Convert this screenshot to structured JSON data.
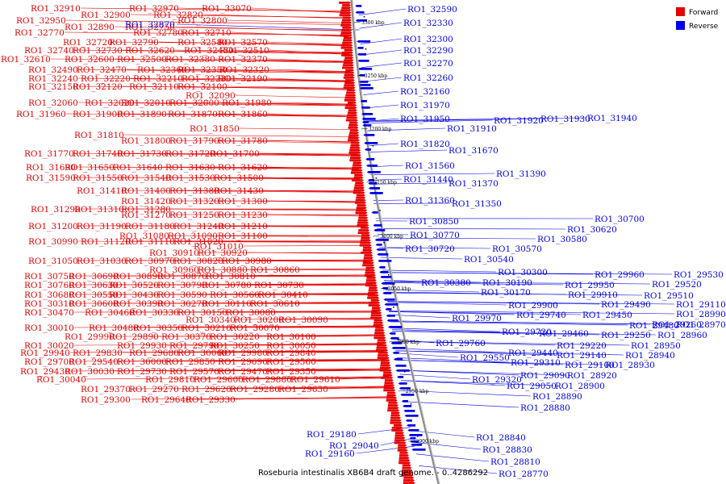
{
  "caption": "Roseburia intestinalis XB6B4 draft genome. - 0..4286292",
  "colors": {
    "forward": "#e60000",
    "reverse": "#0000e6"
  },
  "legend": [
    {
      "name": "Forward",
      "color": "#e60000"
    },
    {
      "name": "Reverse",
      "color": "#0000e6"
    }
  ],
  "ticks": [
    "3300 kbp",
    "3250 kbp",
    "3200 kbp",
    "3150 kbp",
    "3100 kbp",
    "3050 kbp",
    "3000 kbp",
    "2950 kbp",
    "2900 kbp"
  ],
  "forward_labels": [
    "RO1_32910",
    "RO1_32970",
    "RO1_33070",
    "RO1_32900",
    "RO1_32820",
    "RO1_32950",
    "RO1_32800",
    "RO1_32890",
    "RO1_32750",
    "RO1_32770",
    "RO1_32780",
    "RO1_32710",
    "RO1_32720",
    "RO1_32790",
    "RO1_32580",
    "RO1_32570",
    "RO1_32740",
    "RO1_32730",
    "RO1_32620",
    "RO1_32450",
    "RO1_32510",
    "RO1_32610",
    "RO1_32600",
    "RO1_32500",
    "RO1_32380",
    "RO1_32370",
    "RO1_32490",
    "RO1_32470",
    "RO1_32360",
    "RO1_32350",
    "RO1_32320",
    "RO1_32240",
    "RO1_32220",
    "RO1_32210",
    "RO1_32230",
    "RO1_32190",
    "RO1_32150",
    "RO1_32120",
    "RO1_32110",
    "RO1_32100",
    "RO1_32090",
    "RO1_32060",
    "RO1_32020",
    "RO1_32010",
    "RO1_32000",
    "RO1_31980",
    "RO1_31960",
    "RO1_31900",
    "RO1_31890",
    "RO1_31870",
    "RO1_31860",
    "RO1_31850",
    "RO1_31810",
    "RO1_31800",
    "RO1_31790",
    "RO1_31780",
    "RO1_31770",
    "RO1_31740",
    "RO1_31730",
    "RO1_31720",
    "RO1_31700",
    "RO1_31690",
    "RO1_31650",
    "RO1_31640",
    "RO1_31630",
    "RO1_31620",
    "RO1_31590",
    "RO1_31550",
    "RO1_31540",
    "RO1_31530",
    "RO1_31500",
    "RO1_31410",
    "RO1_31400",
    "RO1_31380",
    "RO1_31430",
    "RO1_31420",
    "RO1_31320",
    "RO1_31300",
    "RO1_31290",
    "RO1_31310",
    "RO1_31280",
    "RO1_31270",
    "RO1_31250",
    "RO1_31230",
    "RO1_31200",
    "RO1_31190",
    "RO1_31180",
    "RO1_31240",
    "RO1_31210",
    "RO1_31080",
    "RO1_31090",
    "RO1_31100",
    "RO1_30990",
    "RO1_31120",
    "RO1_31110",
    "RO1_31020",
    "RO1_31010",
    "RO1_30910",
    "RO1_30920",
    "RO1_31050",
    "RO1_31030",
    "RO1_30970",
    "RO1_30820",
    "RO1_30980",
    "RO1_30960",
    "RO1_30880",
    "RO1_30860",
    "RO1_30750",
    "RO1_30690",
    "RO1_30890",
    "RO1_30870",
    "RO1_30810",
    "RO1_30760",
    "RO1_30630",
    "RO1_30520",
    "RO1_30790",
    "RO1_30780",
    "RO1_30730",
    "RO1_30680",
    "RO1_30550",
    "RO1_30430",
    "RO1_30590",
    "RO1_30560",
    "RO1_30410",
    "RO1_30310",
    "RO1_30600",
    "RO1_30390",
    "RO1_30270",
    "RO1_30110",
    "RO1_30610",
    "RO1_30470",
    "RO1_30460",
    "RO1_30330",
    "RO1_30150",
    "RO1_30080",
    "RO1_30340",
    "RO1_30200",
    "RO1_30090",
    "RO1_30010",
    "RO1_30480",
    "RO1_30350",
    "RO1_30210",
    "RO1_30070",
    "RO1_29990",
    "RO1_29890",
    "RO1_30370",
    "RO1_30220",
    "RO1_30100",
    "RO1_30020",
    "RO1_29930",
    "RO1_29790",
    "RO1_30250",
    "RO1_30050",
    "RO1_29940",
    "RO1_29830",
    "RO1_29680",
    "RO1_30060",
    "RO1_29980",
    "RO1_29840",
    "RO1_29700",
    "RO1_29540",
    "RO1_30000",
    "RO1_29850",
    "RO1_29690",
    "RO1_29560",
    "RO1_29430",
    "RO1_30030",
    "RO1_29730",
    "RO1_29570",
    "RO1_29470",
    "RO1_29350",
    "RO1_30040",
    "RO1_29810",
    "RO1_29600",
    "RO1_29880",
    "RO1_29610",
    "RO1_29370",
    "RO1_29270",
    "RO1_29620",
    "RO1_29280",
    "RO1_29630",
    "RO1_29300",
    "RO1_29640",
    "RO1_29330"
  ],
  "reverse_labels": [
    "RO1_32590",
    "RO1_32330",
    "RO1_32870",
    "RO1_32300",
    "RO1_32290",
    "RO1_32270",
    "RO1_32260",
    "RO1_32160",
    "RO1_31970",
    "RO1_31950",
    "RO1_31920",
    "RO1_31930",
    "RO1_31940",
    "RO1_31910",
    "RO1_31820",
    "RO1_31670",
    "RO1_31560",
    "RO1_31390",
    "RO1_31440",
    "RO1_31370",
    "RO1_31360",
    "RO1_31350",
    "RO1_30850",
    "RO1_30700",
    "RO1_30770",
    "RO1_30620",
    "RO1_30580",
    "RO1_30720",
    "RO1_30570",
    "RO1_30540",
    "RO1_30300",
    "RO1_30380",
    "RO1_30190",
    "RO1_30170",
    "RO1_29960",
    "RO1_29530",
    "RO1_29950",
    "RO1_29520",
    "RO1_29910",
    "RO1_29510",
    "RO1_29900",
    "RO1_29490",
    "RO1_29110",
    "RO1_29970",
    "RO1_29740",
    "RO1_29450",
    "RO1_29480",
    "RO1_29260",
    "RO1_28990",
    "RO1_29720",
    "RO1_29460",
    "RO1_29250",
    "RO1_28970",
    "RO1_28960",
    "RO1_29760",
    "RO1_29220",
    "RO1_28950",
    "RO1_29550",
    "RO1_29440",
    "RO1_29140",
    "RO1_28940",
    "RO1_29310",
    "RO1_29100",
    "RO1_28930",
    "RO1_29320",
    "RO1_29090",
    "RO1_28920",
    "RO1_29050",
    "RO1_28900",
    "RO1_28890",
    "RO1_28880",
    "RO1_29180",
    "RO1_29040",
    "RO1_29160",
    "RO1_28840",
    "RO1_28830",
    "RO1_28810",
    "RO1_28770"
  ]
}
